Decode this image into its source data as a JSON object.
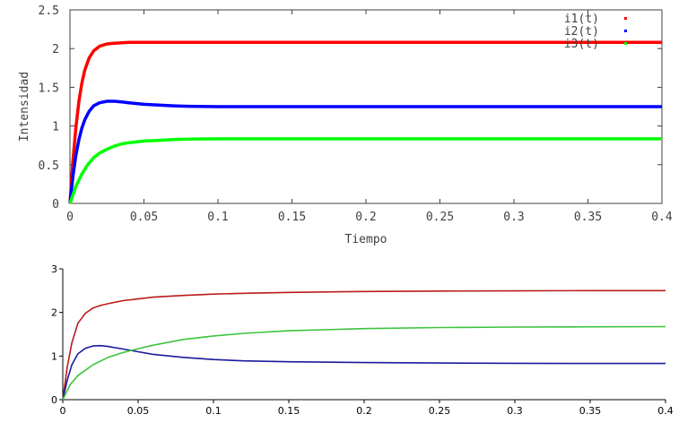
{
  "chart_data": [
    {
      "type": "line",
      "title": "",
      "xlabel": "Tiempo",
      "ylabel": "Intensidad",
      "xlim": [
        0,
        0.4
      ],
      "ylim": [
        0,
        2.5
      ],
      "x_ticks": [
        "0",
        "0.05",
        "0.1",
        "0.15",
        "0.2",
        "0.25",
        "0.3",
        "0.35",
        "0.4"
      ],
      "y_ticks": [
        "0",
        "0.5",
        "1",
        "1.5",
        "2",
        "2.5"
      ],
      "legend_position": "top-right",
      "grid": false,
      "series": [
        {
          "name": "i1(t)",
          "color": "#ff0000",
          "x": [
            0,
            0.002,
            0.004,
            0.006,
            0.008,
            0.01,
            0.013,
            0.016,
            0.02,
            0.025,
            0.03,
            0.035,
            0.04,
            0.05,
            0.06,
            0.08,
            0.1,
            0.15,
            0.2,
            0.3,
            0.4
          ],
          "y": [
            0,
            0.55,
            0.98,
            1.31,
            1.55,
            1.72,
            1.88,
            1.97,
            2.03,
            2.06,
            2.07,
            2.075,
            2.08,
            2.08,
            2.08,
            2.08,
            2.08,
            2.08,
            2.08,
            2.08,
            2.08
          ]
        },
        {
          "name": "i2(t)",
          "color": "#0000ff",
          "x": [
            0,
            0.002,
            0.004,
            0.006,
            0.008,
            0.01,
            0.013,
            0.016,
            0.02,
            0.025,
            0.03,
            0.035,
            0.04,
            0.05,
            0.06,
            0.07,
            0.08,
            0.1,
            0.12,
            0.15,
            0.2,
            0.3,
            0.4
          ],
          "y": [
            0,
            0.35,
            0.62,
            0.82,
            0.97,
            1.08,
            1.19,
            1.26,
            1.3,
            1.32,
            1.32,
            1.31,
            1.3,
            1.28,
            1.27,
            1.26,
            1.255,
            1.25,
            1.25,
            1.25,
            1.25,
            1.25,
            1.25
          ]
        },
        {
          "name": "i3(t)",
          "color": "#00ff00",
          "x": [
            0,
            0.004,
            0.008,
            0.012,
            0.016,
            0.02,
            0.025,
            0.03,
            0.035,
            0.04,
            0.05,
            0.06,
            0.07,
            0.08,
            0.1,
            0.12,
            0.15,
            0.2,
            0.3,
            0.4
          ],
          "y": [
            0,
            0.22,
            0.38,
            0.5,
            0.59,
            0.65,
            0.7,
            0.74,
            0.77,
            0.785,
            0.805,
            0.815,
            0.825,
            0.83,
            0.835,
            0.835,
            0.835,
            0.835,
            0.835,
            0.835
          ]
        }
      ]
    },
    {
      "type": "line",
      "title": "",
      "xlabel": "",
      "ylabel": "",
      "xlim": [
        0,
        0.4
      ],
      "ylim": [
        0,
        3
      ],
      "x_ticks": [
        "0",
        "0.05",
        "0.1",
        "0.15",
        "0.2",
        "0.25",
        "0.3",
        "0.35",
        "0.4"
      ],
      "y_ticks": [
        "0",
        "1",
        "2",
        "3"
      ],
      "grid": false,
      "series": [
        {
          "color": "#b81c1c",
          "x": [
            0,
            0.003,
            0.006,
            0.01,
            0.015,
            0.02,
            0.025,
            0.03,
            0.04,
            0.05,
            0.06,
            0.08,
            0.1,
            0.12,
            0.15,
            0.2,
            0.25,
            0.3,
            0.35,
            0.4
          ],
          "y": [
            0,
            0.75,
            1.3,
            1.75,
            1.98,
            2.1,
            2.16,
            2.2,
            2.27,
            2.31,
            2.35,
            2.39,
            2.42,
            2.44,
            2.46,
            2.48,
            2.49,
            2.495,
            2.5,
            2.5
          ]
        },
        {
          "color": "#1a1a9c",
          "x": [
            0,
            0.003,
            0.006,
            0.01,
            0.015,
            0.02,
            0.025,
            0.03,
            0.04,
            0.05,
            0.06,
            0.08,
            0.1,
            0.12,
            0.15,
            0.2,
            0.25,
            0.3,
            0.35,
            0.4
          ],
          "y": [
            0,
            0.45,
            0.8,
            1.05,
            1.18,
            1.23,
            1.24,
            1.22,
            1.16,
            1.1,
            1.04,
            0.97,
            0.92,
            0.89,
            0.87,
            0.85,
            0.84,
            0.835,
            0.83,
            0.83
          ]
        },
        {
          "color": "#3cc43c",
          "x": [
            0,
            0.005,
            0.01,
            0.02,
            0.03,
            0.04,
            0.05,
            0.06,
            0.08,
            0.1,
            0.12,
            0.15,
            0.2,
            0.25,
            0.3,
            0.35,
            0.4
          ],
          "y": [
            0,
            0.35,
            0.55,
            0.8,
            0.97,
            1.08,
            1.17,
            1.25,
            1.38,
            1.46,
            1.52,
            1.58,
            1.63,
            1.655,
            1.665,
            1.67,
            1.675
          ]
        }
      ]
    }
  ]
}
